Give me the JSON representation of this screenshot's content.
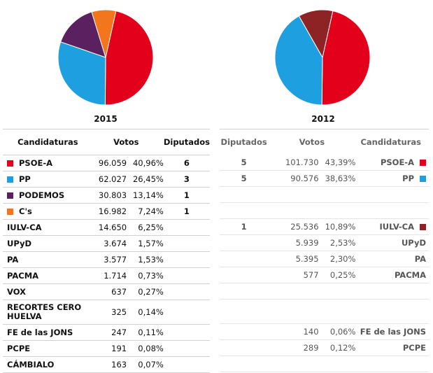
{
  "chart_data": [
    {
      "type": "pie",
      "title": "2015",
      "slices": [
        {
          "label": "PSOE-A",
          "value": 40.96,
          "color": "#e3001b"
        },
        {
          "label": "PP",
          "value": 26.45,
          "color": "#1ea0e0"
        },
        {
          "label": "PODEMOS",
          "value": 13.14,
          "color": "#5b2060"
        },
        {
          "label": "C's",
          "value": 7.24,
          "color": "#f3751c"
        }
      ]
    },
    {
      "type": "pie",
      "title": "2012",
      "slices": [
        {
          "label": "PSOE-A",
          "value": 43.39,
          "color": "#e3001b"
        },
        {
          "label": "PP",
          "value": 38.63,
          "color": "#1ea0e0"
        },
        {
          "label": "IULV-CA",
          "value": 10.89,
          "color": "#8e2326"
        }
      ]
    },
    {
      "type": "table",
      "title": "2015",
      "columns": [
        "Candidaturas",
        "Votos",
        "Diputados"
      ],
      "rows": [
        {
          "name": "PSOE-A",
          "color": "#e3001b",
          "votes": "96.059",
          "pct": "40,96%",
          "seats": "6"
        },
        {
          "name": "PP",
          "color": "#1ea0e0",
          "votes": "62.027",
          "pct": "26,45%",
          "seats": "3"
        },
        {
          "name": "PODEMOS",
          "color": "#5b2060",
          "votes": "30.803",
          "pct": "13,14%",
          "seats": "1"
        },
        {
          "name": "C's",
          "color": "#f3751c",
          "votes": "16.982",
          "pct": "7,24%",
          "seats": "1"
        },
        {
          "name": "IULV-CA",
          "color": null,
          "votes": "14.650",
          "pct": "6,25%",
          "seats": ""
        },
        {
          "name": "UPyD",
          "color": null,
          "votes": "3.674",
          "pct": "1,57%",
          "seats": ""
        },
        {
          "name": "PA",
          "color": null,
          "votes": "3.577",
          "pct": "1,53%",
          "seats": ""
        },
        {
          "name": "PACMA",
          "color": null,
          "votes": "1.714",
          "pct": "0,73%",
          "seats": ""
        },
        {
          "name": "VOX",
          "color": null,
          "votes": "637",
          "pct": "0,27%",
          "seats": ""
        },
        {
          "name": "RECORTES CERO HUELVA",
          "color": null,
          "votes": "325",
          "pct": "0,14%",
          "seats": ""
        },
        {
          "name": "FE de las JONS",
          "color": null,
          "votes": "247",
          "pct": "0,11%",
          "seats": ""
        },
        {
          "name": "PCPE",
          "color": null,
          "votes": "191",
          "pct": "0,08%",
          "seats": ""
        },
        {
          "name": "CÁMBIALO",
          "color": null,
          "votes": "163",
          "pct": "0,07%",
          "seats": ""
        }
      ]
    },
    {
      "type": "table",
      "title": "2012",
      "columns": [
        "Diputados",
        "Votos",
        "Candidaturas"
      ],
      "rows": [
        {
          "name": "PSOE-A",
          "color": "#e3001b",
          "votes": "101.730",
          "pct": "43,39%",
          "seats": "5"
        },
        {
          "name": "PP",
          "color": "#1ea0e0",
          "votes": "90.576",
          "pct": "38,63%",
          "seats": "5"
        },
        {
          "name": "",
          "color": null,
          "votes": "",
          "pct": "",
          "seats": ""
        },
        {
          "name": "",
          "color": null,
          "votes": "",
          "pct": "",
          "seats": ""
        },
        {
          "name": "IULV-CA",
          "color": "#8e2326",
          "votes": "25.536",
          "pct": "10,89%",
          "seats": "1"
        },
        {
          "name": "UPyD",
          "color": null,
          "votes": "5.939",
          "pct": "2,53%",
          "seats": ""
        },
        {
          "name": "PA",
          "color": null,
          "votes": "5.395",
          "pct": "2,30%",
          "seats": ""
        },
        {
          "name": "PACMA",
          "color": null,
          "votes": "577",
          "pct": "0,25%",
          "seats": ""
        },
        {
          "name": "",
          "color": null,
          "votes": "",
          "pct": "",
          "seats": ""
        },
        {
          "name": "",
          "color": null,
          "votes": "",
          "pct": "",
          "seats": ""
        },
        {
          "name": "FE de las JONS",
          "color": null,
          "votes": "140",
          "pct": "0,06%",
          "seats": ""
        },
        {
          "name": "PCPE",
          "color": null,
          "votes": "289",
          "pct": "0,12%",
          "seats": ""
        },
        {
          "name": "",
          "color": null,
          "votes": "",
          "pct": "",
          "seats": ""
        }
      ]
    }
  ]
}
